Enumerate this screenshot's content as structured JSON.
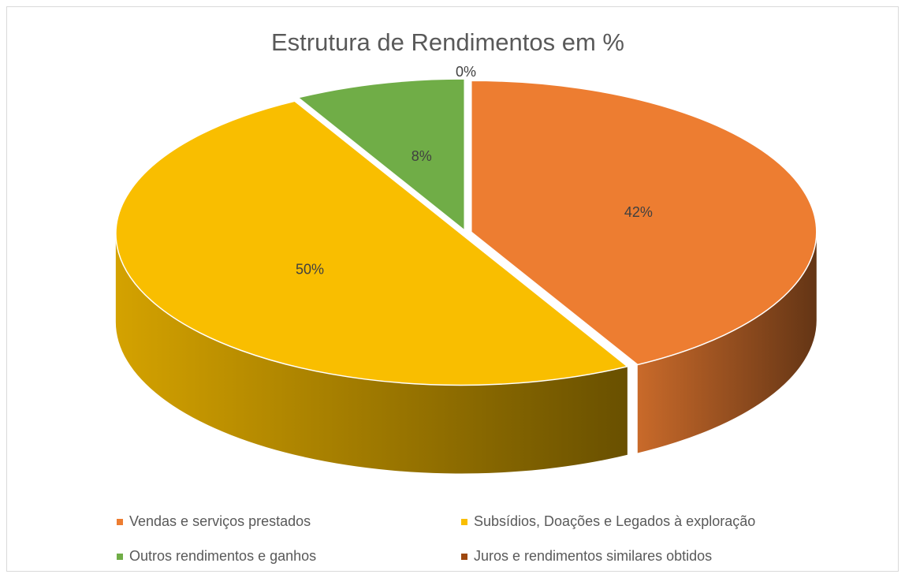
{
  "chart_data": {
    "type": "pie3d",
    "title": "Estrutura de Rendimentos em %",
    "categories": [
      "Vendas e serviços prestados",
      "Subsídios, Doações e Legados à exploração",
      "Outros rendimentos e ganhos",
      "Juros e rendimentos similares obtidos"
    ],
    "values": [
      42,
      50,
      8,
      0
    ],
    "value_labels": [
      "42%",
      "50%",
      "8%",
      "0%"
    ],
    "colors": [
      "#ED7D31",
      "#F9BE00",
      "#70AD47",
      "#9E480E"
    ],
    "legend": "bottom"
  }
}
